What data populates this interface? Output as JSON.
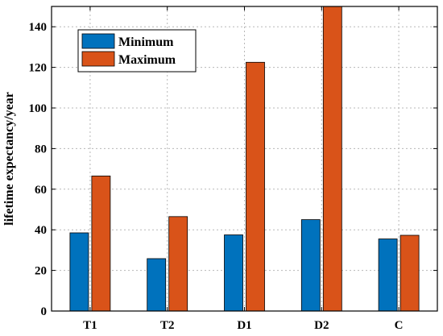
{
  "chart_data": {
    "type": "bar",
    "categories": [
      "T1",
      "T2",
      "D1",
      "D2",
      "C"
    ],
    "series": [
      {
        "name": "Minimum",
        "color": "#0072BD",
        "values": [
          38.5,
          25.8,
          37.5,
          45.0,
          35.5
        ]
      },
      {
        "name": "Maximum",
        "color": "#D95319",
        "values": [
          66.5,
          46.5,
          122.5,
          150,
          37.3
        ]
      }
    ],
    "xlabel": "",
    "ylabel": "lifetime expectancy/year",
    "ylim": [
      0,
      150
    ],
    "yticks": [
      0,
      20,
      40,
      60,
      80,
      100,
      120,
      140
    ],
    "grid": true,
    "legend_position": "top-left"
  }
}
